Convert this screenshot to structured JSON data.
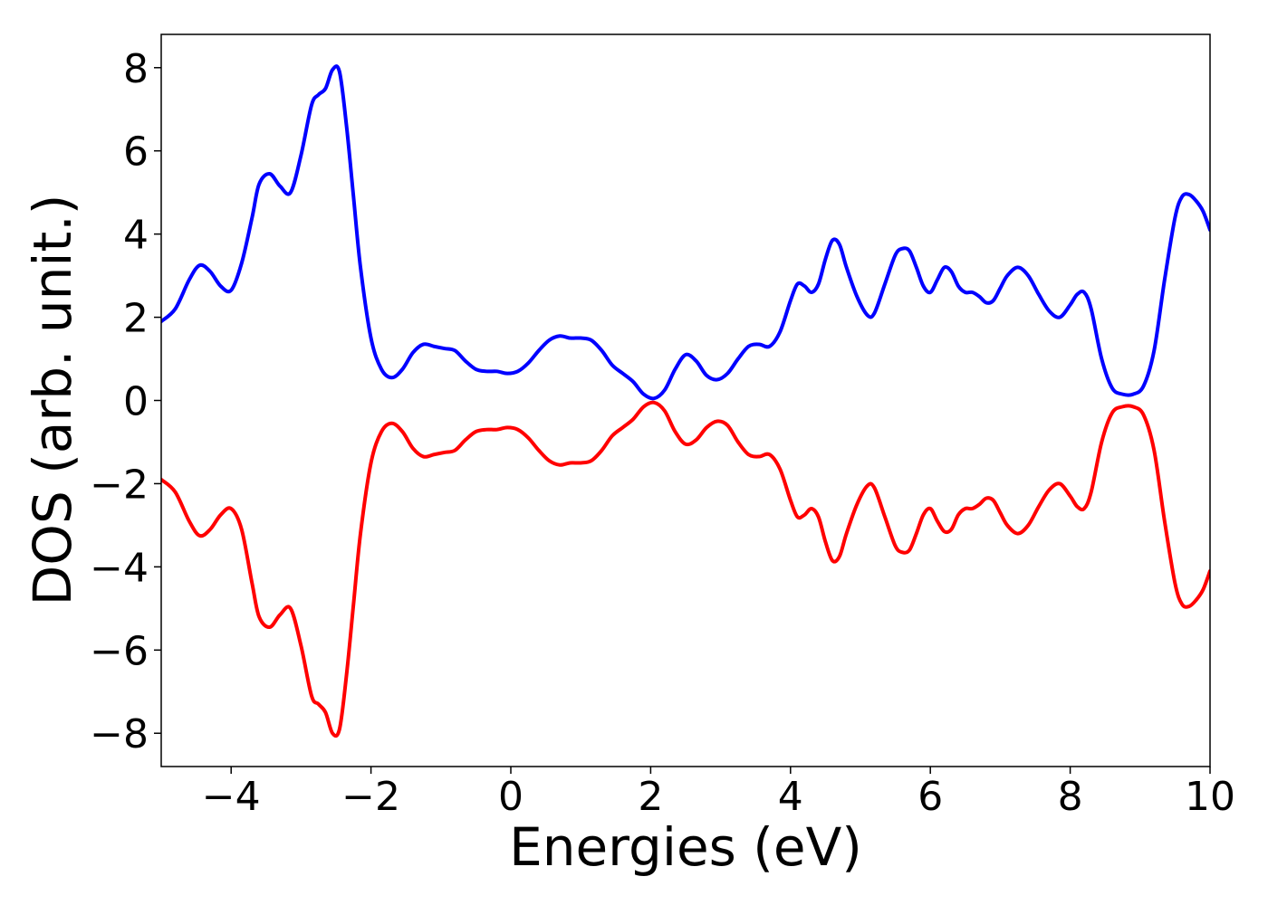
{
  "chart_data": {
    "type": "line",
    "title": "",
    "xlabel": "Energies (eV)",
    "ylabel": "DOS (arb. unit.)",
    "xlim": [
      -5,
      10
    ],
    "ylim": [
      -8.8,
      8.8
    ],
    "grid": false,
    "legend": "none",
    "x_ticks": [
      -4,
      -2,
      0,
      2,
      4,
      6,
      8,
      10
    ],
    "x_tick_labels": [
      "−4",
      "−2",
      "0",
      "2",
      "4",
      "6",
      "8",
      "10"
    ],
    "y_ticks": [
      8,
      6,
      4,
      2,
      0,
      -2,
      -4,
      -6,
      -8
    ],
    "y_tick_labels": [
      "8",
      "6",
      "4",
      "2",
      "0",
      "−2",
      "−4",
      "−6",
      "−8"
    ],
    "series": [
      {
        "color": "#0000ff",
        "x": [
          -5.0,
          -4.8,
          -4.6,
          -4.45,
          -4.3,
          -4.15,
          -4.0,
          -3.85,
          -3.7,
          -3.6,
          -3.45,
          -3.3,
          -3.15,
          -3.0,
          -2.85,
          -2.75,
          -2.65,
          -2.55,
          -2.45,
          -2.35,
          -2.25,
          -2.15,
          -2.0,
          -1.85,
          -1.7,
          -1.55,
          -1.4,
          -1.25,
          -1.1,
          -0.95,
          -0.8,
          -0.65,
          -0.5,
          -0.35,
          -0.2,
          -0.05,
          0.1,
          0.25,
          0.4,
          0.55,
          0.7,
          0.85,
          1.0,
          1.15,
          1.3,
          1.45,
          1.6,
          1.75,
          1.9,
          2.05,
          2.2,
          2.35,
          2.5,
          2.65,
          2.8,
          2.95,
          3.1,
          3.25,
          3.4,
          3.55,
          3.7,
          3.85,
          4.0,
          4.1,
          4.2,
          4.3,
          4.4,
          4.5,
          4.6,
          4.7,
          4.8,
          4.95,
          5.1,
          5.2,
          5.35,
          5.5,
          5.6,
          5.7,
          5.8,
          5.9,
          6.0,
          6.1,
          6.2,
          6.3,
          6.4,
          6.5,
          6.6,
          6.7,
          6.8,
          6.9,
          7.0,
          7.1,
          7.25,
          7.4,
          7.55,
          7.7,
          7.85,
          8.0,
          8.1,
          8.2,
          8.3,
          8.45,
          8.6,
          8.75,
          8.9,
          9.05,
          9.2,
          9.35,
          9.5,
          9.6,
          9.7,
          9.8,
          9.9,
          10.0
        ],
        "values": [
          1.9,
          2.2,
          2.9,
          3.25,
          3.1,
          2.75,
          2.65,
          3.3,
          4.4,
          5.2,
          5.45,
          5.15,
          5.0,
          5.9,
          7.1,
          7.35,
          7.5,
          7.95,
          7.9,
          6.6,
          4.9,
          3.2,
          1.5,
          0.75,
          0.55,
          0.75,
          1.15,
          1.35,
          1.3,
          1.25,
          1.2,
          0.95,
          0.75,
          0.7,
          0.7,
          0.65,
          0.7,
          0.9,
          1.2,
          1.45,
          1.55,
          1.5,
          1.5,
          1.45,
          1.2,
          0.85,
          0.65,
          0.45,
          0.15,
          0.05,
          0.25,
          0.75,
          1.1,
          0.95,
          0.6,
          0.5,
          0.65,
          1.0,
          1.3,
          1.35,
          1.3,
          1.65,
          2.4,
          2.8,
          2.75,
          2.6,
          2.8,
          3.4,
          3.85,
          3.75,
          3.2,
          2.5,
          2.05,
          2.1,
          2.8,
          3.5,
          3.65,
          3.6,
          3.2,
          2.75,
          2.6,
          2.9,
          3.2,
          3.1,
          2.75,
          2.6,
          2.6,
          2.5,
          2.35,
          2.4,
          2.7,
          3.0,
          3.2,
          3.0,
          2.55,
          2.15,
          2.0,
          2.3,
          2.55,
          2.6,
          2.2,
          1.0,
          0.3,
          0.15,
          0.15,
          0.35,
          1.2,
          2.9,
          4.4,
          4.9,
          4.95,
          4.8,
          4.55,
          4.1
        ]
      },
      {
        "color": "#ff0000",
        "x": [
          -5.0,
          -4.8,
          -4.6,
          -4.45,
          -4.3,
          -4.15,
          -4.0,
          -3.85,
          -3.7,
          -3.6,
          -3.45,
          -3.3,
          -3.15,
          -3.0,
          -2.85,
          -2.75,
          -2.65,
          -2.55,
          -2.45,
          -2.35,
          -2.25,
          -2.15,
          -2.0,
          -1.85,
          -1.7,
          -1.55,
          -1.4,
          -1.25,
          -1.1,
          -0.95,
          -0.8,
          -0.65,
          -0.5,
          -0.35,
          -0.2,
          -0.05,
          0.1,
          0.25,
          0.4,
          0.55,
          0.7,
          0.85,
          1.0,
          1.15,
          1.3,
          1.45,
          1.6,
          1.75,
          1.9,
          2.05,
          2.2,
          2.35,
          2.5,
          2.65,
          2.8,
          2.95,
          3.1,
          3.25,
          3.4,
          3.55,
          3.7,
          3.85,
          4.0,
          4.1,
          4.2,
          4.3,
          4.4,
          4.5,
          4.6,
          4.7,
          4.8,
          4.95,
          5.1,
          5.2,
          5.35,
          5.5,
          5.6,
          5.7,
          5.8,
          5.9,
          6.0,
          6.1,
          6.2,
          6.3,
          6.4,
          6.5,
          6.6,
          6.7,
          6.8,
          6.9,
          7.0,
          7.1,
          7.25,
          7.4,
          7.55,
          7.7,
          7.85,
          8.0,
          8.1,
          8.2,
          8.3,
          8.45,
          8.6,
          8.75,
          8.9,
          9.05,
          9.2,
          9.35,
          9.5,
          9.6,
          9.7,
          9.8,
          9.9,
          10.0
        ],
        "values": [
          -1.9,
          -2.2,
          -2.9,
          -3.25,
          -3.1,
          -2.75,
          -2.6,
          -3.1,
          -4.4,
          -5.2,
          -5.45,
          -5.15,
          -5.0,
          -5.9,
          -7.1,
          -7.3,
          -7.5,
          -8.0,
          -7.9,
          -6.6,
          -4.9,
          -3.2,
          -1.5,
          -0.75,
          -0.55,
          -0.75,
          -1.15,
          -1.35,
          -1.3,
          -1.25,
          -1.2,
          -0.95,
          -0.75,
          -0.7,
          -0.7,
          -0.65,
          -0.7,
          -0.9,
          -1.2,
          -1.45,
          -1.55,
          -1.5,
          -1.5,
          -1.45,
          -1.2,
          -0.85,
          -0.65,
          -0.45,
          -0.15,
          -0.05,
          -0.25,
          -0.75,
          -1.05,
          -0.95,
          -0.65,
          -0.5,
          -0.6,
          -1.0,
          -1.3,
          -1.35,
          -1.3,
          -1.65,
          -2.4,
          -2.8,
          -2.75,
          -2.6,
          -2.8,
          -3.4,
          -3.85,
          -3.75,
          -3.2,
          -2.5,
          -2.05,
          -2.1,
          -2.8,
          -3.5,
          -3.65,
          -3.6,
          -3.2,
          -2.75,
          -2.6,
          -2.9,
          -3.15,
          -3.1,
          -2.75,
          -2.6,
          -2.6,
          -2.5,
          -2.35,
          -2.4,
          -2.7,
          -3.0,
          -3.2,
          -3.0,
          -2.55,
          -2.15,
          -2.0,
          -2.3,
          -2.55,
          -2.6,
          -2.2,
          -1.0,
          -0.3,
          -0.15,
          -0.15,
          -0.35,
          -1.2,
          -2.9,
          -4.4,
          -4.9,
          -4.95,
          -4.8,
          -4.55,
          -4.1
        ]
      }
    ]
  }
}
